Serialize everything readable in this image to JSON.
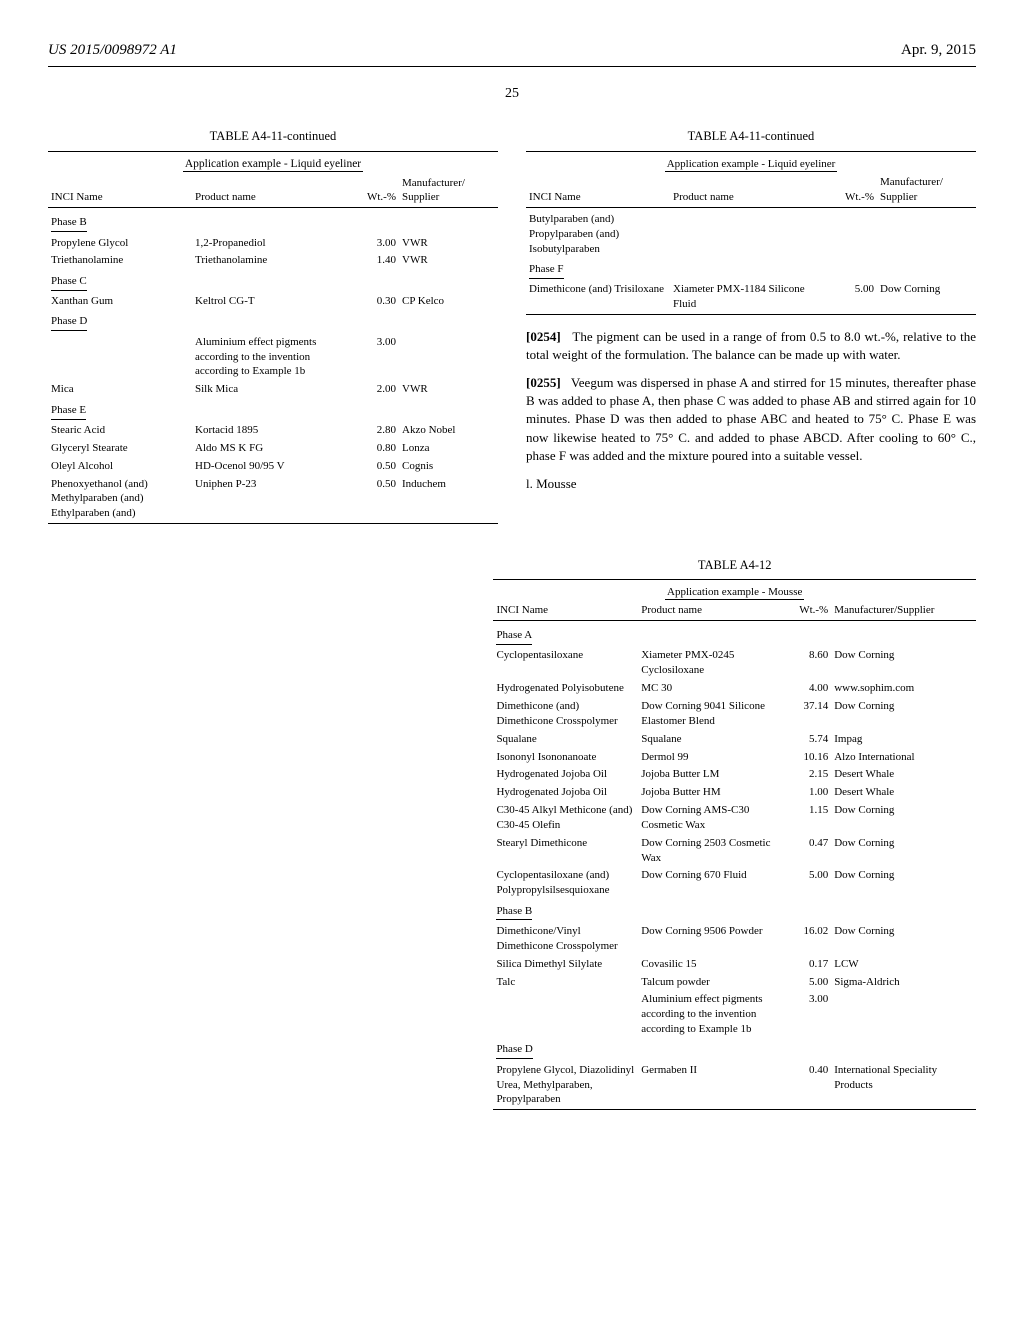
{
  "header": {
    "pub_number": "US 2015/0098972 A1",
    "date": "Apr. 9, 2015",
    "page_number": "25"
  },
  "tableA4_11_left": {
    "title": "TABLE A4-11-continued",
    "subtitle": "Application example - Liquid eyeliner",
    "columns": [
      "INCI Name",
      "Product name",
      "Wt.-%",
      "Manufacturer/\nSupplier"
    ],
    "phases": [
      {
        "label": "Phase B",
        "rows": [
          [
            "Propylene Glycol",
            "1,2-Propanediol",
            "3.00",
            "VWR"
          ],
          [
            "Triethanolamine",
            "Triethanolamine",
            "1.40",
            "VWR"
          ]
        ]
      },
      {
        "label": "Phase C",
        "rows": [
          [
            "Xanthan Gum",
            "Keltrol CG-T",
            "0.30",
            "CP Kelco"
          ]
        ]
      },
      {
        "label": "Phase D",
        "rows": [
          [
            "",
            "Aluminium effect pigments according to the invention according to Example 1b",
            "3.00",
            ""
          ],
          [
            "Mica",
            "Silk Mica",
            "2.00",
            "VWR"
          ]
        ]
      },
      {
        "label": "Phase E",
        "rows": [
          [
            "Stearic Acid",
            "Kortacid 1895",
            "2.80",
            "Akzo Nobel"
          ],
          [
            "Glyceryl Stearate",
            "Aldo MS K FG",
            "0.80",
            "Lonza"
          ],
          [
            "Oleyl Alcohol",
            "HD-Ocenol 90/95 V",
            "0.50",
            "Cognis"
          ],
          [
            "Phenoxyethanol (and) Methylparaben (and) Ethylparaben (and)",
            "Uniphen P-23",
            "0.50",
            "Induchem"
          ]
        ]
      }
    ]
  },
  "tableA4_11_right": {
    "title": "TABLE A4-11-continued",
    "subtitle": "Application example - Liquid eyeliner",
    "columns": [
      "INCI Name",
      "Product name",
      "Wt.-%",
      "Manufacturer/\nSupplier"
    ],
    "pre_rows": [
      [
        "Butylparaben (and) Propylparaben (and) Isobutylparaben",
        "",
        "",
        ""
      ]
    ],
    "phases": [
      {
        "label": "Phase F",
        "rows": [
          [
            "Dimethicone (and) Trisiloxane",
            "Xiameter PMX-1184 Silicone Fluid",
            "5.00",
            "Dow Corning"
          ]
        ]
      }
    ]
  },
  "para_0254": {
    "label": "[0254]",
    "text": "The pigment can be used in a range of from 0.5 to 8.0 wt.-%, relative to the total weight of the formulation. The balance can be made up with water."
  },
  "para_0255": {
    "label": "[0255]",
    "text": "Veegum was dispersed in phase A and stirred for 15 minutes, thereafter phase B was added to phase A, then phase C was added to phase AB and stirred again for 10 minutes. Phase D was then added to phase ABC and heated to 75° C. Phase E was now likewise heated to 75° C. and added to phase ABCD. After cooling to 60° C., phase F was added and the mixture poured into a suitable vessel."
  },
  "section_l": "l. Mousse",
  "tableA4_12": {
    "title": "TABLE A4-12",
    "subtitle": "Application example - Mousse",
    "columns": [
      "INCI Name",
      "Product name",
      "Wt.-%",
      "Manufacturer/Supplier"
    ],
    "phases": [
      {
        "label": "Phase A",
        "rows": [
          [
            "Cyclopentasiloxane",
            "Xiameter PMX-0245 Cyclosiloxane",
            "8.60",
            "Dow Corning"
          ],
          [
            "Hydrogenated Polyisobutene",
            "MC 30",
            "4.00",
            "www.sophim.com"
          ],
          [
            "Dimethicone (and) Dimethicone Crosspolymer",
            "Dow Corning 9041 Silicone Elastomer Blend",
            "37.14",
            "Dow Corning"
          ],
          [
            "Squalane",
            "Squalane",
            "5.74",
            "Impag"
          ],
          [
            "Isononyl Isononanoate",
            "Dermol 99",
            "10.16",
            "Alzo International"
          ],
          [
            "Hydrogenated Jojoba Oil",
            "Jojoba Butter LM",
            "2.15",
            "Desert Whale"
          ],
          [
            "Hydrogenated Jojoba Oil",
            "Jojoba Butter HM",
            "1.00",
            "Desert Whale"
          ],
          [
            "C30-45 Alkyl Methicone (and) C30-45 Olefin",
            "Dow Corning AMS-C30 Cosmetic Wax",
            "1.15",
            "Dow Corning"
          ],
          [
            "Stearyl Dimethicone",
            "Dow Corning 2503 Cosmetic Wax",
            "0.47",
            "Dow Corning"
          ],
          [
            "Cyclopentasiloxane (and) Polypropylsilsesquioxane",
            "Dow Corning 670 Fluid",
            "5.00",
            "Dow Corning"
          ]
        ]
      },
      {
        "label": "Phase B",
        "rows": [
          [
            "Dimethicone/Vinyl Dimethicone Crosspolymer",
            "Dow Corning 9506 Powder",
            "16.02",
            "Dow Corning"
          ],
          [
            "Silica Dimethyl Silylate",
            "Covasilic 15",
            "0.17",
            "LCW"
          ],
          [
            "Talc",
            "Talcum powder",
            "5.00",
            "Sigma-Aldrich"
          ],
          [
            "",
            "Aluminium effect pigments according to the invention according to Example 1b",
            "3.00",
            ""
          ]
        ]
      },
      {
        "label": "Phase D",
        "rows": [
          [
            "Propylene Glycol, Diazolidinyl Urea, Methylparaben, Propylparaben",
            "Germaben II",
            "0.40",
            "International Speciality Products"
          ]
        ]
      }
    ]
  }
}
